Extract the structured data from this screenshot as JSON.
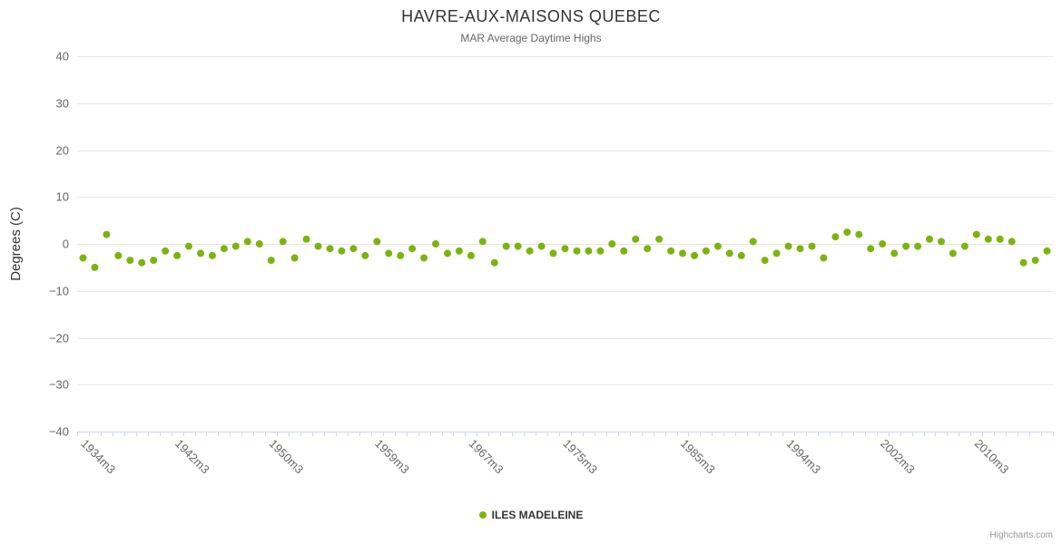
{
  "credits": {
    "label": "Highcharts.com"
  },
  "colors": {
    "point": "#7cb40e",
    "grid": "#e6e6e6",
    "axis_line": "#ccd6eb",
    "text_muted": "#666666",
    "text": "#333333",
    "credits_text": "#999999"
  },
  "chart_data": {
    "type": "scatter",
    "title": "HAVRE-AUX-MAISONS QUEBEC",
    "subtitle": "MAR Average Daytime Highs",
    "xlabel": "",
    "ylabel": "Degrees (C)",
    "ylim": [
      -40,
      40
    ],
    "ytick_interval": 10,
    "grid": true,
    "legend_position": "bottom",
    "x": [
      "1934m3",
      "1935m3",
      "1936m3",
      "1937m3",
      "1938m3",
      "1939m3",
      "1940m3",
      "1941m3",
      "1942m3",
      "1943m3",
      "1944m3",
      "1945m3",
      "1946m3",
      "1947m3",
      "1948m3",
      "1949m3",
      "1950m3",
      "1951m3",
      "1952m3",
      "1953m3",
      "1954m3",
      "1955m3",
      "1956m3",
      "1957m3",
      "1958m3",
      "1959m3",
      "1960m3",
      "1961m3",
      "1962m3",
      "1963m3",
      "1964m3",
      "1965m3",
      "1966m3",
      "1967m3",
      "1968m3",
      "1969m3",
      "1970m3",
      "1971m3",
      "1972m3",
      "1973m3",
      "1974m3",
      "1975m3",
      "1976m3",
      "1977m3",
      "1978m3",
      "1979m3",
      "1980m3",
      "1981m3",
      "1982m3",
      "1983m3",
      "1984m3",
      "1985m3",
      "1986m3",
      "1987m3",
      "1988m3",
      "1989m3",
      "1990m3",
      "1991m3",
      "1992m3",
      "1993m3",
      "1994m3",
      "1995m3",
      "1996m3",
      "1997m3",
      "1998m3",
      "1999m3",
      "2000m3",
      "2001m3",
      "2002m3",
      "2003m3",
      "2004m3",
      "2005m3",
      "2006m3",
      "2007m3",
      "2008m3",
      "2009m3",
      "2010m3",
      "2011m3",
      "2012m3",
      "2013m3",
      "2014m3",
      "2015m3",
      "2016m3"
    ],
    "x_ticks": [
      {
        "index": 0,
        "label": "1934m3"
      },
      {
        "index": 8,
        "label": "1942m3"
      },
      {
        "index": 16,
        "label": "1950m3"
      },
      {
        "index": 25,
        "label": "1959m3"
      },
      {
        "index": 33,
        "label": "1967m3"
      },
      {
        "index": 41,
        "label": "1975m3"
      },
      {
        "index": 51,
        "label": "1985m3"
      },
      {
        "index": 60,
        "label": "1994m3"
      },
      {
        "index": 68,
        "label": "2002m3"
      },
      {
        "index": 76,
        "label": "2010m3"
      }
    ],
    "series": [
      {
        "name": "ILES MADELEINE",
        "color": "#7cb40e",
        "marker": "circle",
        "values": [
          -3,
          -5,
          2,
          -2.5,
          -3.5,
          -4,
          -3.5,
          -1.5,
          -2.5,
          -0.5,
          -2,
          -2.5,
          -1,
          -0.5,
          0.5,
          0,
          -3.5,
          0.5,
          -3,
          1,
          -0.5,
          -1,
          -1.5,
          -1,
          -2.5,
          0.5,
          -2,
          -2.5,
          -1,
          -3,
          0,
          -2,
          -1.5,
          -2.5,
          0.5,
          -4,
          -0.5,
          -0.5,
          -1.5,
          -0.5,
          -2,
          -1,
          -1.5,
          -1.5,
          -1.5,
          0,
          -1.5,
          1,
          -1,
          1,
          -1.5,
          -2,
          -2.5,
          -1.5,
          -0.5,
          -2,
          -2.5,
          0.5,
          -3.5,
          -2,
          -0.5,
          -1,
          -0.5,
          -3,
          1.5,
          2.5,
          2,
          -1,
          0,
          -2,
          -0.5,
          -0.5,
          1,
          0.5,
          -2,
          -0.5,
          2,
          1,
          1,
          0.5,
          -4,
          -3.5,
          -1.5
        ]
      }
    ]
  }
}
